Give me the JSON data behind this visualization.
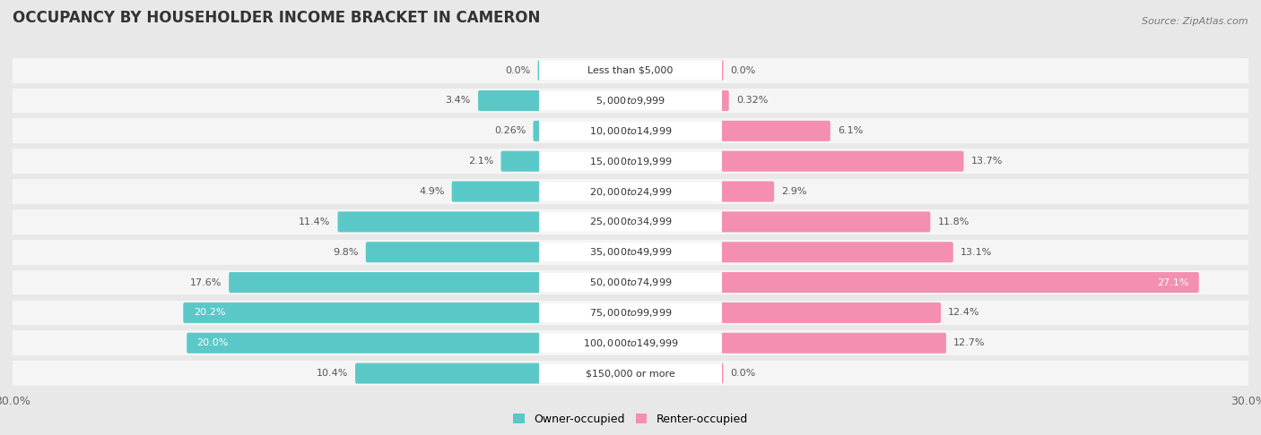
{
  "title": "OCCUPANCY BY HOUSEHOLDER INCOME BRACKET IN CAMERON",
  "source": "Source: ZipAtlas.com",
  "categories": [
    "Less than $5,000",
    "$5,000 to $9,999",
    "$10,000 to $14,999",
    "$15,000 to $19,999",
    "$20,000 to $24,999",
    "$25,000 to $34,999",
    "$35,000 to $49,999",
    "$50,000 to $74,999",
    "$75,000 to $99,999",
    "$100,000 to $149,999",
    "$150,000 or more"
  ],
  "owner_values": [
    0.0,
    3.4,
    0.26,
    2.1,
    4.9,
    11.4,
    9.8,
    17.6,
    20.2,
    20.0,
    10.4
  ],
  "renter_values": [
    0.0,
    0.32,
    6.1,
    13.7,
    2.9,
    11.8,
    13.1,
    27.1,
    12.4,
    12.7,
    0.0
  ],
  "owner_color": "#5bc8c8",
  "renter_color": "#f48fb1",
  "background_color": "#e8e8e8",
  "row_bg_color": "#f5f5f5",
  "bar_height": 0.52,
  "max_val": 30.0,
  "title_fontsize": 12,
  "label_fontsize": 8,
  "category_fontsize": 8,
  "legend_fontsize": 9,
  "source_fontsize": 8
}
